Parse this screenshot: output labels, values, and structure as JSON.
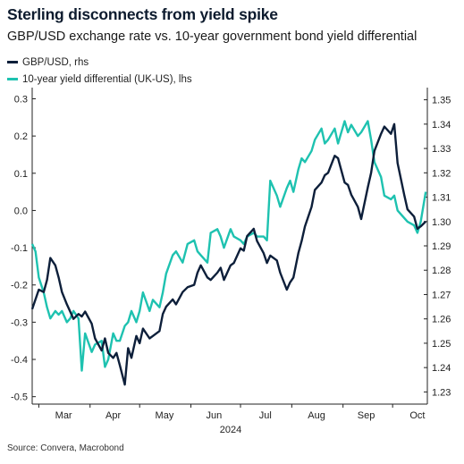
{
  "title": "Sterling disconnects from yield spike",
  "subtitle": "GBP/USD exchange rate vs. 10-year government bond yield differential",
  "source": "Source: Convera, Macrobond",
  "colors": {
    "gbpusd": "#0d1f3a",
    "yield": "#1ec2b0",
    "axis": "#222222"
  },
  "chart_data": {
    "type": "line",
    "xlabel": "2024",
    "x_tick_labels": [
      "Mar",
      "Apr",
      "May",
      "Jun",
      "Jul",
      "Aug",
      "Sep",
      "Oct"
    ],
    "x_tick_dates": [
      "2024-03-01",
      "2024-04-01",
      "2024-05-01",
      "2024-06-01",
      "2024-07-01",
      "2024-08-01",
      "2024-09-01",
      "2024-10-01"
    ],
    "x_month_labels": [
      "Mar",
      "Apr",
      "May",
      "Jun",
      "Jul",
      "Aug",
      "Sep",
      "Oct"
    ],
    "x_month_label_dates": [
      "2024-03-16",
      "2024-04-15",
      "2024-05-16",
      "2024-06-15",
      "2024-07-16",
      "2024-08-16",
      "2024-09-15",
      "2024-10-16"
    ],
    "xlim": [
      "2024-02-26",
      "2024-10-22"
    ],
    "left_axis": {
      "ylim": [
        -0.52,
        0.33
      ],
      "ticks": [
        0.3,
        0.2,
        0.1,
        0.0,
        -0.1,
        -0.2,
        -0.3,
        -0.4,
        -0.5
      ],
      "tick_labels": [
        "0.3",
        "0.2",
        "0.1",
        "0.0",
        "-0.1",
        "-0.2",
        "-0.3",
        "-0.4",
        "-0.5"
      ]
    },
    "right_axis": {
      "ylim": [
        1.225,
        1.355
      ],
      "ticks": [
        1.35,
        1.34,
        1.33,
        1.32,
        1.31,
        1.3,
        1.29,
        1.28,
        1.27,
        1.26,
        1.25,
        1.24,
        1.23
      ],
      "tick_labels": [
        "1.35",
        "1.34",
        "1.33",
        "1.32",
        "1.31",
        "1.30",
        "1.29",
        "1.28",
        "1.27",
        "1.26",
        "1.25",
        "1.24",
        "1.23"
      ]
    },
    "legend_position": "top-left",
    "grid": false,
    "series": [
      {
        "name": "GBP/USD, rhs",
        "axis": "right",
        "x": [
          "2024-02-26",
          "2024-02-28",
          "2024-03-01",
          "2024-03-04",
          "2024-03-06",
          "2024-03-08",
          "2024-03-11",
          "2024-03-13",
          "2024-03-15",
          "2024-03-18",
          "2024-03-20",
          "2024-03-22",
          "2024-03-25",
          "2024-03-27",
          "2024-03-29",
          "2024-04-02",
          "2024-04-04",
          "2024-04-08",
          "2024-04-10",
          "2024-04-12",
          "2024-04-15",
          "2024-04-17",
          "2024-04-19",
          "2024-04-22",
          "2024-04-24",
          "2024-04-26",
          "2024-04-29",
          "2024-05-01",
          "2024-05-03",
          "2024-05-07",
          "2024-05-09",
          "2024-05-13",
          "2024-05-15",
          "2024-05-17",
          "2024-05-21",
          "2024-05-23",
          "2024-05-27",
          "2024-05-30",
          "2024-06-03",
          "2024-06-05",
          "2024-06-07",
          "2024-06-11",
          "2024-06-13",
          "2024-06-17",
          "2024-06-19",
          "2024-06-21",
          "2024-06-25",
          "2024-06-27",
          "2024-07-01",
          "2024-07-03",
          "2024-07-05",
          "2024-07-09",
          "2024-07-11",
          "2024-07-15",
          "2024-07-17",
          "2024-07-19",
          "2024-07-23",
          "2024-07-25",
          "2024-07-29",
          "2024-07-31",
          "2024-08-02",
          "2024-08-05",
          "2024-08-07",
          "2024-08-09",
          "2024-08-13",
          "2024-08-15",
          "2024-08-19",
          "2024-08-21",
          "2024-08-23",
          "2024-08-27",
          "2024-08-29",
          "2024-09-02",
          "2024-09-04",
          "2024-09-06",
          "2024-09-10",
          "2024-09-12",
          "2024-09-16",
          "2024-09-18",
          "2024-09-20",
          "2024-09-24",
          "2024-09-26",
          "2024-09-30",
          "2024-10-02",
          "2024-10-04",
          "2024-10-08",
          "2024-10-10",
          "2024-10-14",
          "2024-10-16",
          "2024-10-18",
          "2024-10-21"
        ],
        "values": [
          1.264,
          1.268,
          1.272,
          1.271,
          1.276,
          1.285,
          1.282,
          1.277,
          1.271,
          1.266,
          1.263,
          1.26,
          1.262,
          1.261,
          1.263,
          1.258,
          1.252,
          1.247,
          1.252,
          1.246,
          1.244,
          1.246,
          1.241,
          1.233,
          1.248,
          1.244,
          1.253,
          1.25,
          1.256,
          1.252,
          1.253,
          1.255,
          1.262,
          1.265,
          1.268,
          1.266,
          1.271,
          1.273,
          1.274,
          1.279,
          1.282,
          1.277,
          1.276,
          1.279,
          1.281,
          1.276,
          1.282,
          1.283,
          1.289,
          1.288,
          1.294,
          1.297,
          1.292,
          1.287,
          1.283,
          1.286,
          1.284,
          1.279,
          1.272,
          1.275,
          1.277,
          1.287,
          1.292,
          1.298,
          1.306,
          1.313,
          1.316,
          1.319,
          1.32,
          1.327,
          1.326,
          1.316,
          1.315,
          1.311,
          1.306,
          1.301,
          1.314,
          1.32,
          1.329,
          1.336,
          1.339,
          1.336,
          1.34,
          1.324,
          1.311,
          1.305,
          1.302,
          1.297,
          1.298,
          1.3
        ]
      },
      {
        "name": "10-year yield differential (UK-US), lhs",
        "axis": "left",
        "x": [
          "2024-02-26",
          "2024-02-28",
          "2024-03-01",
          "2024-03-04",
          "2024-03-06",
          "2024-03-08",
          "2024-03-11",
          "2024-03-13",
          "2024-03-15",
          "2024-03-18",
          "2024-03-20",
          "2024-03-22",
          "2024-03-25",
          "2024-03-27",
          "2024-03-29",
          "2024-04-02",
          "2024-04-04",
          "2024-04-08",
          "2024-04-10",
          "2024-04-12",
          "2024-04-15",
          "2024-04-17",
          "2024-04-19",
          "2024-04-22",
          "2024-04-24",
          "2024-04-26",
          "2024-04-29",
          "2024-05-01",
          "2024-05-03",
          "2024-05-07",
          "2024-05-09",
          "2024-05-13",
          "2024-05-15",
          "2024-05-17",
          "2024-05-21",
          "2024-05-23",
          "2024-05-27",
          "2024-05-30",
          "2024-06-03",
          "2024-06-05",
          "2024-06-07",
          "2024-06-11",
          "2024-06-13",
          "2024-06-17",
          "2024-06-19",
          "2024-06-21",
          "2024-06-25",
          "2024-06-27",
          "2024-07-01",
          "2024-07-03",
          "2024-07-05",
          "2024-07-09",
          "2024-07-11",
          "2024-07-15",
          "2024-07-17",
          "2024-07-19",
          "2024-07-23",
          "2024-07-25",
          "2024-07-29",
          "2024-07-31",
          "2024-08-02",
          "2024-08-05",
          "2024-08-07",
          "2024-08-09",
          "2024-08-13",
          "2024-08-15",
          "2024-08-19",
          "2024-08-21",
          "2024-08-23",
          "2024-08-27",
          "2024-08-29",
          "2024-09-02",
          "2024-09-04",
          "2024-09-06",
          "2024-09-10",
          "2024-09-12",
          "2024-09-16",
          "2024-09-18",
          "2024-09-20",
          "2024-09-24",
          "2024-09-26",
          "2024-09-30",
          "2024-10-02",
          "2024-10-04",
          "2024-10-08",
          "2024-10-10",
          "2024-10-14",
          "2024-10-16",
          "2024-10-18",
          "2024-10-21"
        ],
        "values": [
          -0.09,
          -0.11,
          -0.18,
          -0.22,
          -0.26,
          -0.29,
          -0.27,
          -0.28,
          -0.27,
          -0.3,
          -0.29,
          -0.27,
          -0.29,
          -0.43,
          -0.33,
          -0.38,
          -0.36,
          -0.35,
          -0.42,
          -0.4,
          -0.33,
          -0.35,
          -0.35,
          -0.31,
          -0.3,
          -0.27,
          -0.3,
          -0.27,
          -0.22,
          -0.27,
          -0.24,
          -0.26,
          -0.22,
          -0.17,
          -0.12,
          -0.11,
          -0.14,
          -0.09,
          -0.08,
          -0.11,
          -0.12,
          -0.14,
          -0.06,
          -0.05,
          -0.07,
          -0.1,
          -0.05,
          -0.07,
          -0.08,
          -0.09,
          -0.07,
          -0.06,
          -0.07,
          -0.07,
          -0.08,
          0.08,
          0.04,
          0.01,
          0.06,
          0.08,
          0.05,
          0.11,
          0.14,
          0.13,
          0.16,
          0.19,
          0.22,
          0.18,
          0.19,
          0.22,
          0.18,
          0.24,
          0.21,
          0.23,
          0.2,
          0.21,
          0.24,
          0.19,
          0.13,
          0.09,
          0.04,
          0.03,
          0.04,
          0.0,
          -0.02,
          -0.03,
          -0.04,
          -0.06,
          -0.03,
          0.05
        ]
      }
    ]
  }
}
